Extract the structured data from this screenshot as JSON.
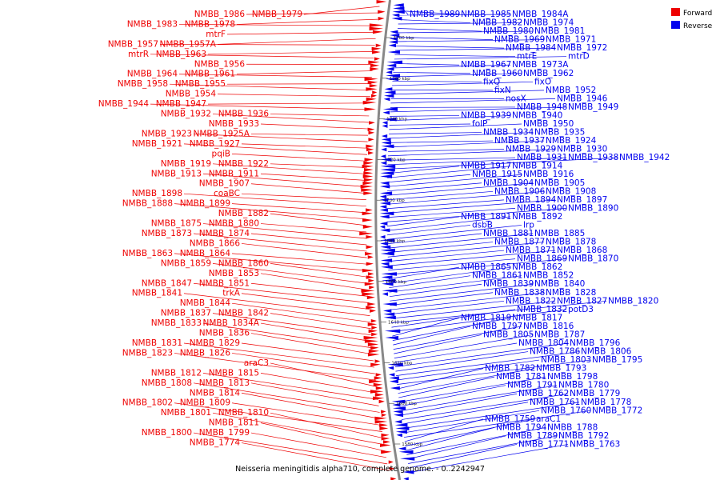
{
  "colors": {
    "forward": "#ee0000",
    "reverse": "#0000ee",
    "backbone": "#888888"
  },
  "caption": "Neisseria meningitidis alpha710, complete genome. - 0..2242947",
  "legend": [
    {
      "label": "Forward",
      "color": "#ee0000"
    },
    {
      "label": "Reverse",
      "color": "#0000ee"
    }
  ],
  "scale_ticks": [
    "1780 kbp",
    "1760 kbp",
    "1740 kbp",
    "1720 kbp",
    "1700 kbp",
    "1680 kbp",
    "1660 kbp",
    "1640 kbp",
    "1620 kbp",
    "1600 kbp",
    "1580 kbp"
  ],
  "forward_labels": [
    "NMBB_1979",
    "NMBB_1986",
    "NMBB_1978",
    "NMBB_1983",
    "mtrF",
    "NMBB_1957A",
    "NMBB_1957",
    "NMBB_1963",
    "mtrR",
    "NMBB_1956",
    "NMBB_1961",
    "NMBB_1964",
    "NMBB_1955",
    "NMBB_1958",
    "NMBB_1954",
    "NMBB_1947",
    "NMBB_1944",
    "NMBB_1936",
    "NMBB_1932",
    "NMBB_1933",
    "NMBB_1925A",
    "NMBB_1923",
    "NMBB_1927",
    "NMBB_1921",
    "pqiB",
    "NMBB_1922",
    "NMBB_1919",
    "NMBB_1911",
    "NMBB_1913",
    "NMBB_1907",
    "coaBC",
    "NMBB_1898",
    "NMBB_1899",
    "NMBB_1888",
    "NMBB_1882",
    "NMBB_1880",
    "NMBB_1875",
    "NMBB_1874",
    "NMBB_1873",
    "NMBB_1866",
    "NMBB_1864",
    "NMBB_1863",
    "NMBB_1860",
    "NMBB_1859",
    "NMBB_1853",
    "NMBB_1851",
    "NMBB_1847",
    "trkA",
    "NMBB_1841",
    "NMBB_1844",
    "NMBB_1842",
    "NMBB_1837",
    "NMBB_1834A",
    "NMBB_1833",
    "NMBB_1836",
    "NMBB_1829",
    "NMBB_1831",
    "NMBB_1826",
    "NMBB_1823",
    "araC3",
    "NMBB_1815",
    "NMBB_1812",
    "NMBB_1813",
    "NMBB_1808",
    "NMBB_1814",
    "NMBB_1809",
    "NMBB_1802",
    "NMBB_1810",
    "NMBB_1801",
    "NMBB_1811",
    "NMBB_1799",
    "NMBB_1800",
    "NMBB_1774"
  ],
  "reverse_labels": [
    "NMBB_1989",
    "NMBB_1985",
    "NMBB_1984A",
    "NMBB_1982",
    "NMBB_1974",
    "NMBB_1980",
    "NMBB_1981",
    "NMBB_1969",
    "NMBB_1971",
    "NMBB_1984",
    "NMBB_1972",
    "mtrE",
    "mtrD",
    "NMBB_1967",
    "NMBB_1973A",
    "NMBB_1960",
    "NMBB_1962",
    "fixQ",
    "fixO",
    "fixN",
    "NMBB_1952",
    "nosX",
    "NMBB_1946",
    "NMBB_1948",
    "NMBB_1949",
    "NMBB_1939",
    "NMBB_1940",
    "folP",
    "NMBB_1950",
    "NMBB_1934",
    "NMBB_1935",
    "NMBB_1937",
    "NMBB_1924",
    "NMBB_1929",
    "NMBB_1930",
    "NMBB_1931",
    "NMBB_1938",
    "NMBB_1942",
    "NMBB_1917",
    "NMBB_1914",
    "NMBB_1915",
    "NMBB_1916",
    "NMBB_1904",
    "NMBB_1905",
    "NMBB_1906",
    "NMBB_1908",
    "NMBB_1894",
    "NMBB_1897",
    "NMBB_1900",
    "NMBB_1890",
    "NMBB_1891",
    "NMBB_1892",
    "dsbB",
    "lrp",
    "NMBB_1881",
    "NMBB_1885",
    "NMBB_1877",
    "NMBB_1878",
    "NMBB_1871",
    "NMBB_1868",
    "NMBB_1869",
    "NMBB_1870",
    "NMBB_1865",
    "NMBB_1862",
    "NMBB_1861",
    "NMBB_1852",
    "NMBB_1839",
    "NMBB_1840",
    "NMBB_1838",
    "NMBB_1828",
    "NMBB_1822",
    "NMBB_1827",
    "NMBB_1820",
    "NMBB_1832",
    "potD3",
    "NMBB_1819",
    "NMBB_1817",
    "NMBB_1797",
    "NMBB_1816",
    "NMBB_1805",
    "NMBB_1787",
    "NMBB_1804",
    "NMBB_1796",
    "NMBB_1786",
    "NMBB_1806",
    "NMBB_1803",
    "NMBB_1795",
    "NMBB_1782",
    "NMBB_1793",
    "NMBB_1781",
    "NMBB_1798",
    "NMBB_1791",
    "NMBB_1780",
    "NMBB_1762",
    "NMBB_1779",
    "NMBB_1761",
    "NMBB_1778",
    "NMBB_1760",
    "NMBB_1772",
    "NMBB_1759",
    "araC1",
    "NMBB_1794",
    "NMBB_1788",
    "NMBB_1789",
    "NMBB_1792",
    "NMBB_1771",
    "NMBB_1763"
  ]
}
